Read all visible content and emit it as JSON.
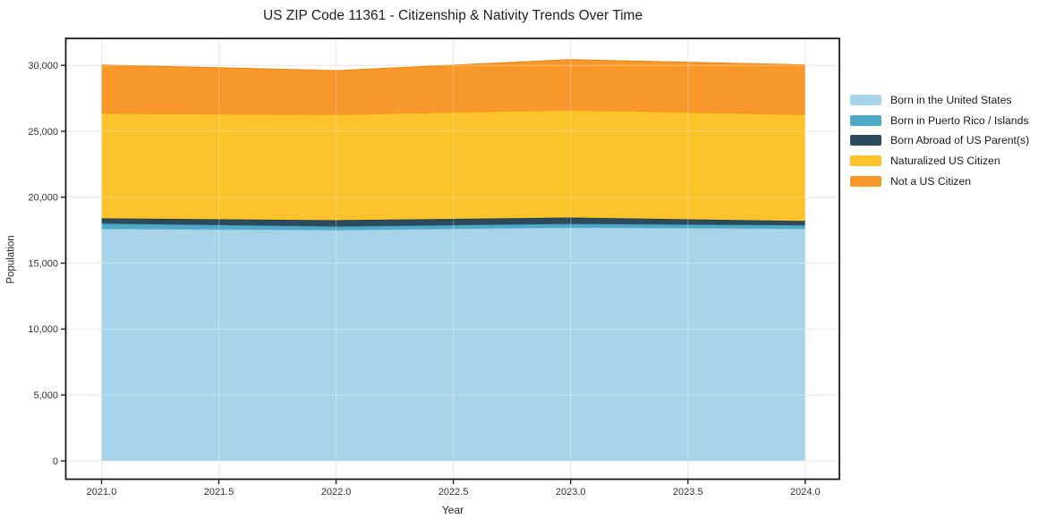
{
  "chart_data": {
    "type": "area",
    "stacked": true,
    "title": "US ZIP Code 11361 - Citizenship & Nativity Trends Over Time",
    "xlabel": "Year",
    "ylabel": "Population",
    "x": [
      2021,
      2022,
      2023,
      2024
    ],
    "series": [
      {
        "name": "Born in the United States",
        "color": "#A7D4E8",
        "edge": "#90C5DE",
        "values": [
          17600,
          17500,
          17700,
          17600
        ]
      },
      {
        "name": "Born in Puerto Rico / Islands",
        "color": "#4FAAC8",
        "edge": "#3E96B4",
        "values": [
          400,
          280,
          280,
          270
        ]
      },
      {
        "name": "Born Abroad of US Parent(s)",
        "color": "#2B4A5C",
        "edge": "#203D4D",
        "values": [
          400,
          480,
          480,
          330
        ]
      },
      {
        "name": "Naturalized US Citizen",
        "color": "#FEC32B",
        "edge": "#E9AF10",
        "values": [
          7950,
          8000,
          8140,
          8050
        ]
      },
      {
        "name": "Not a US Citizen",
        "color": "#F8982B",
        "edge": "#E88A18",
        "values": [
          3680,
          3340,
          3830,
          3780
        ]
      }
    ],
    "totals": [
      30030,
      29600,
      30430,
      30030
    ],
    "x_ticks": [
      "2021.0",
      "2021.5",
      "2022.0",
      "2022.5",
      "2023.0",
      "2023.5",
      "2024.0"
    ],
    "x_tick_values": [
      2021,
      2021.5,
      2022,
      2022.5,
      2023,
      2023.5,
      2024
    ],
    "y_ticks": [
      "0",
      "5,000",
      "10,000",
      "15,000",
      "20,000",
      "25,000",
      "30,000"
    ],
    "y_tick_values": [
      0,
      5000,
      10000,
      15000,
      20000,
      25000,
      30000
    ],
    "xlim": [
      2021,
      2024
    ],
    "ylim": [
      0,
      30000
    ],
    "grid": true,
    "legend_position": "right-outside",
    "colors": {
      "spine": "#1a1a1a",
      "grid_under": "#e2e2e2",
      "grid_over": "rgba(255,255,255,0.30)",
      "tick": "#222222",
      "tick_label": "#333333",
      "background": "#ffffff"
    }
  }
}
